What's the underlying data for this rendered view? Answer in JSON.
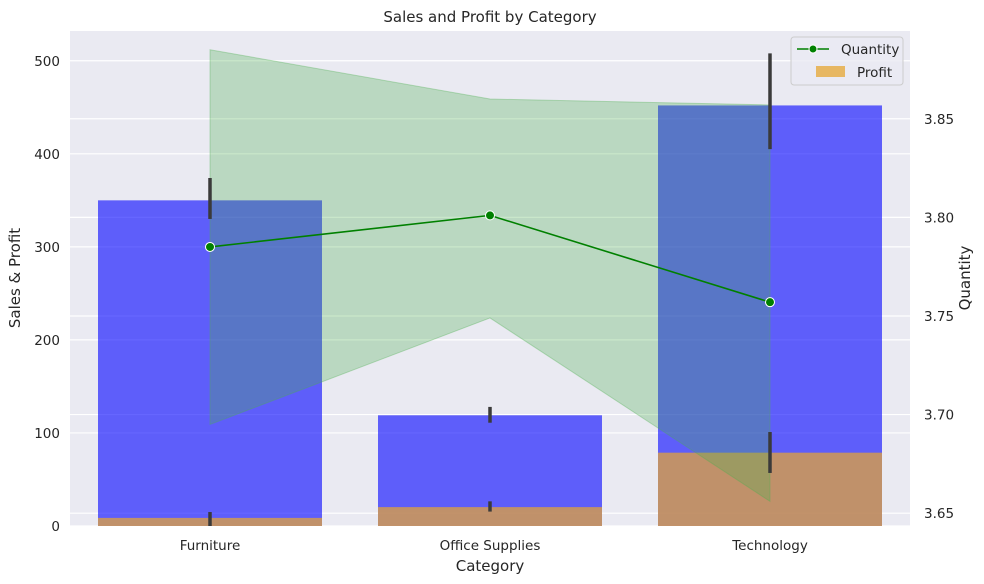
{
  "chart_data": {
    "type": "bar",
    "title": "Sales and Profit by Category",
    "xlabel": "Category",
    "ylabel": "Sales & Profit",
    "y2label": "Quantity",
    "categories": [
      "Furniture",
      "Office Supplies",
      "Technology"
    ],
    "ylim": [
      0,
      532
    ],
    "y_ticks": [
      0,
      100,
      200,
      300,
      400,
      500
    ],
    "y2lim": [
      3.6435,
      3.8945
    ],
    "y2_ticks": [
      "3.65",
      "3.70",
      "3.75",
      "3.80",
      "3.85"
    ],
    "grid": true,
    "legend_position": "top-right",
    "series": [
      {
        "name": "Sales",
        "kind": "bar",
        "axis": "left",
        "color": "#0000ff",
        "values": [
          350,
          119,
          452
        ],
        "ci_low": [
          330,
          111,
          405
        ],
        "ci_high": [
          374,
          128,
          508
        ]
      },
      {
        "name": "Profit",
        "kind": "bar",
        "axis": "left",
        "color": "#e6a532",
        "values": [
          8.7,
          20.3,
          78.8
        ],
        "ci_low": [
          0,
          15.5,
          57
        ],
        "ci_high": [
          15,
          26.5,
          101
        ]
      },
      {
        "name": "Quantity",
        "kind": "line",
        "axis": "right",
        "color": "#008000",
        "band_color": "#4caf50",
        "values": [
          3.785,
          3.801,
          3.757
        ],
        "ci_low": [
          3.695,
          3.749,
          3.656
        ],
        "ci_high": [
          3.885,
          3.86,
          3.857
        ]
      }
    ],
    "legend": [
      {
        "label": "Quantity",
        "marker": "line"
      },
      {
        "label": "Profit",
        "marker": "patch"
      }
    ]
  }
}
